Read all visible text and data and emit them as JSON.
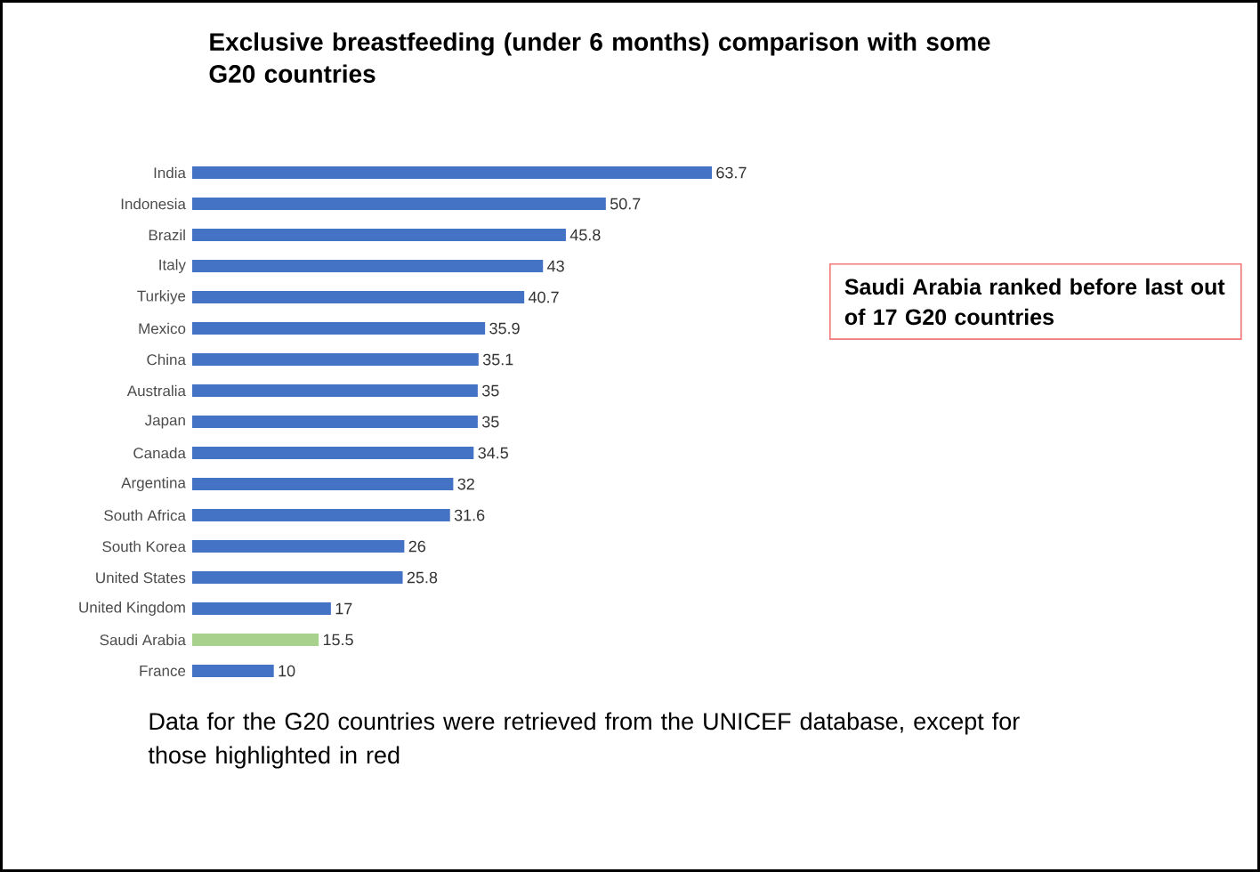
{
  "chart_data": {
    "type": "bar",
    "orientation": "horizontal",
    "title": "Exclusive breastfeeding  (under 6 months) comparison with some G20 countries",
    "categories": [
      "India",
      "Indonesia",
      "Brazil",
      "Italy",
      "Turkiye",
      "Mexico",
      "China",
      "Australia",
      "Japan",
      "Canada",
      "Argentina",
      "South Africa",
      "South Korea",
      "United States",
      "United Kingdom",
      "Saudi Arabia",
      "France"
    ],
    "values": [
      63.7,
      50.7,
      45.8,
      43,
      40.7,
      35.9,
      35.1,
      35,
      35,
      34.5,
      32,
      31.6,
      26,
      25.8,
      17,
      15.5,
      10
    ],
    "colors": [
      "#4472c4",
      "#4472c4",
      "#4472c4",
      "#4472c4",
      "#4472c4",
      "#4472c4",
      "#4472c4",
      "#4472c4",
      "#4472c4",
      "#4472c4",
      "#4472c4",
      "#4472c4",
      "#4472c4",
      "#4472c4",
      "#4472c4",
      "#a9d18e",
      "#4472c4"
    ],
    "data_labels": true,
    "annotations": [
      "Saudi Arabia ranked before last out of 17 G20 countries",
      "Data for the G20 countries were retrieved from the UNICEF database, except for those highlighted in red"
    ]
  }
}
